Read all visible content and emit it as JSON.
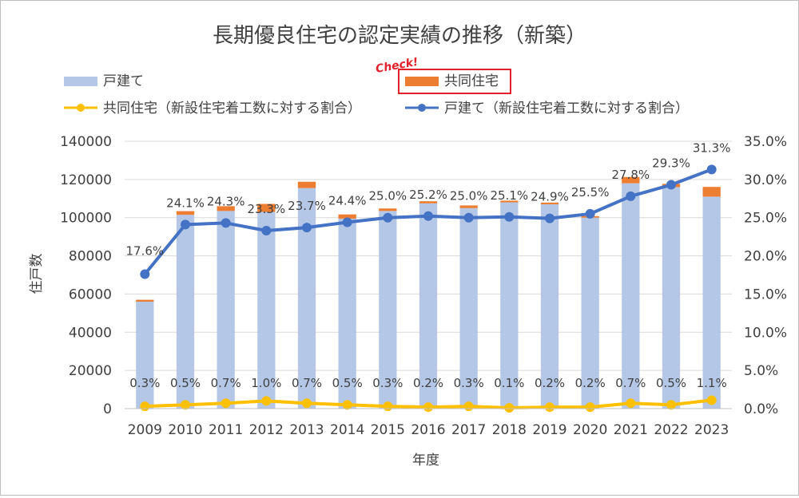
{
  "chart_data": {
    "type": "bar",
    "title": "長期優良住宅の認定実績の推移（新築）",
    "xlabel": "年度",
    "ylabel": "住戸数",
    "ylim": [
      0,
      140000
    ],
    "y2lim": [
      0,
      0.35
    ],
    "left_ticks": [
      "0",
      "20000",
      "40000",
      "60000",
      "80000",
      "100000",
      "120000",
      "140000"
    ],
    "right_ticks": [
      "0.0%",
      "5.0%",
      "10.0%",
      "15.0%",
      "20.0%",
      "25.0%",
      "30.0%",
      "35.0%"
    ],
    "grid": true,
    "legend_position": "top",
    "annotation": "Check!",
    "categories": [
      "2009",
      "2010",
      "2011",
      "2012",
      "2013",
      "2014",
      "2015",
      "2016",
      "2017",
      "2018",
      "2019",
      "2020",
      "2021",
      "2022",
      "2023"
    ],
    "series": [
      {
        "name": "戸建て",
        "kind": "bar",
        "color": "#b4c7e7",
        "values": [
          56000,
          101500,
          103500,
          103000,
          115500,
          99500,
          103500,
          107500,
          105000,
          108000,
          107000,
          100000,
          118000,
          116000,
          111000
        ]
      },
      {
        "name": "共同住宅",
        "kind": "bar",
        "color": "#ed7d31",
        "values": [
          1000,
          1900,
          2500,
          4200,
          3300,
          2200,
          1300,
          1100,
          1400,
          900,
          900,
          800,
          3300,
          1700,
          5100
        ]
      },
      {
        "name": "共同住宅（新設住宅着工数に対する割合）",
        "kind": "line",
        "color": "#ffc000",
        "values": [
          0.003,
          0.005,
          0.007,
          0.01,
          0.007,
          0.005,
          0.003,
          0.002,
          0.003,
          0.001,
          0.002,
          0.002,
          0.007,
          0.005,
          0.011
        ],
        "labels": [
          "0.3%",
          "0.5%",
          "0.7%",
          "1.0%",
          "0.7%",
          "0.5%",
          "0.3%",
          "0.2%",
          "0.3%",
          "0.1%",
          "0.2%",
          "0.2%",
          "0.7%",
          "0.5%",
          "1.1%"
        ]
      },
      {
        "name": "戸建て（新設住宅着工数に対する割合）",
        "kind": "line",
        "color": "#4472c4",
        "values": [
          0.176,
          0.241,
          0.243,
          0.233,
          0.237,
          0.244,
          0.25,
          0.252,
          0.25,
          0.251,
          0.249,
          0.255,
          0.278,
          0.293,
          0.313
        ],
        "labels": [
          "17.6%",
          "24.1%",
          "24.3%",
          "23.3%",
          "23.7%",
          "24.4%",
          "25.0%",
          "25.2%",
          "25.0%",
          "25.1%",
          "24.9%",
          "25.5%",
          "27.8%",
          "29.3%",
          "31.3%"
        ]
      }
    ]
  }
}
